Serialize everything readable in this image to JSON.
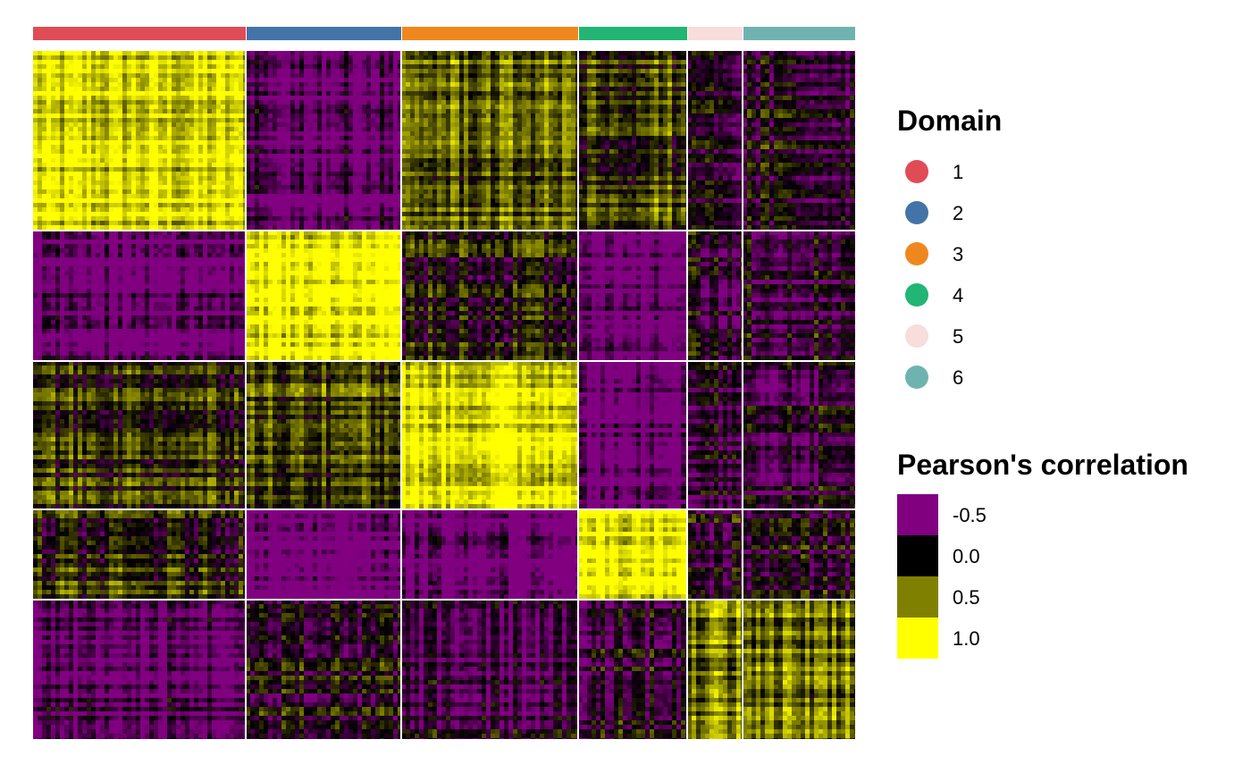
{
  "chart_data": {
    "type": "heatmap",
    "title": "",
    "xlabel": "",
    "ylabel": "",
    "domains": [
      "1",
      "2",
      "3",
      "4",
      "5",
      "6"
    ],
    "domain_colors": [
      "#E04C55",
      "#4374A8",
      "#F0871E",
      "#22B573",
      "#F9DCDC",
      "#6FB3B0"
    ],
    "column_domain_counts": [
      119,
      87,
      99,
      61,
      31,
      63
    ],
    "row_domain_counts": [
      101,
      73,
      83,
      51,
      78
    ],
    "row_domains": [
      "1",
      "2",
      "3",
      "4",
      "5-6"
    ],
    "block_mean_correlation": [
      [
        0.85,
        -0.45,
        0.35,
        0.25,
        -0.2,
        -0.1
      ],
      [
        -0.5,
        1.0,
        0.05,
        -0.55,
        -0.1,
        -0.15
      ],
      [
        0.2,
        0.3,
        0.9,
        -0.55,
        -0.2,
        -0.15
      ],
      [
        0.1,
        -0.6,
        -0.55,
        1.0,
        -0.15,
        -0.1
      ],
      [
        -0.35,
        -0.05,
        -0.25,
        -0.1,
        0.5,
        0.45
      ]
    ],
    "color_scale": {
      "breaks": [
        -0.5,
        0.0,
        0.5,
        1.0
      ],
      "colors": [
        "#800080",
        "#000000",
        "#808000",
        "#FFFF00"
      ]
    }
  },
  "legend": {
    "domain_title": "Domain",
    "domain_items": [
      {
        "label": "1",
        "color": "#E04C55"
      },
      {
        "label": "2",
        "color": "#4374A8"
      },
      {
        "label": "3",
        "color": "#F0871E"
      },
      {
        "label": "4",
        "color": "#22B573"
      },
      {
        "label": "5",
        "color": "#F9DCDC"
      },
      {
        "label": "6",
        "color": "#6FB3B0"
      }
    ],
    "corr_title": "Pearson's correlation",
    "corr_items": [
      {
        "label": "-0.5",
        "color": "#800080"
      },
      {
        "label": "0.0",
        "color": "#000000"
      },
      {
        "label": "0.5",
        "color": "#808000"
      },
      {
        "label": "1.0",
        "color": "#FFFF00"
      }
    ]
  }
}
